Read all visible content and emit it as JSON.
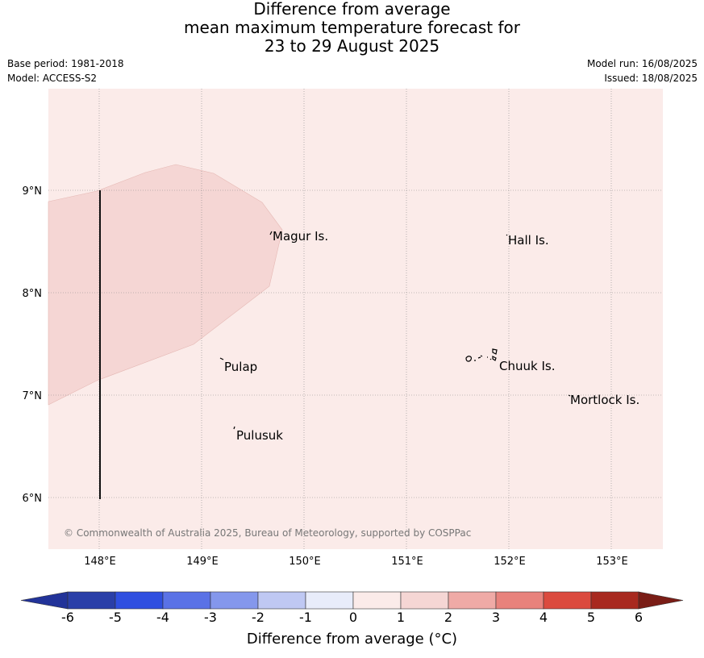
{
  "title": {
    "line1": "Difference from average",
    "line2": "mean maximum temperature forecast for",
    "line3": "23 to 29 August 2025"
  },
  "meta": {
    "base_period": "Base period: 1981-2018",
    "model": "Model: ACCESS-S2",
    "model_run": "Model run: 16/08/2025",
    "issued": "Issued: 18/08/2025"
  },
  "map": {
    "background_color": "#fbebe9",
    "anomaly_polygon_color": "#f5d6d4",
    "lon_ticks": [
      "148°E",
      "149°E",
      "150°E",
      "151°E",
      "152°E",
      "153°E"
    ],
    "lat_ticks": [
      "9°N",
      "8°N",
      "7°N",
      "6°N"
    ],
    "places": [
      {
        "name": "Magur Is."
      },
      {
        "name": "Hall Is."
      },
      {
        "name": "Pulap"
      },
      {
        "name": "Chuuk Is."
      },
      {
        "name": "Mortlock Is."
      },
      {
        "name": "Pulusuk"
      }
    ],
    "copyright": "© Commonwealth of Australia 2025, Bureau of Meteorology, supported by COSPPac"
  },
  "colorbar": {
    "ticks": [
      "-6",
      "-5",
      "-4",
      "-3",
      "-2",
      "-1",
      "0",
      "1",
      "2",
      "3",
      "4",
      "5",
      "6"
    ],
    "colors": [
      "#223399",
      "#2a3fa8",
      "#2f4fe0",
      "#5a72e6",
      "#8497ec",
      "#bfc8f3",
      "#e8ecfa",
      "#fbebe9",
      "#f5d6d4",
      "#efaaa6",
      "#e8827c",
      "#db4a3e",
      "#a8291f",
      "#7a1d16"
    ],
    "label": "Difference from average (°C)"
  }
}
